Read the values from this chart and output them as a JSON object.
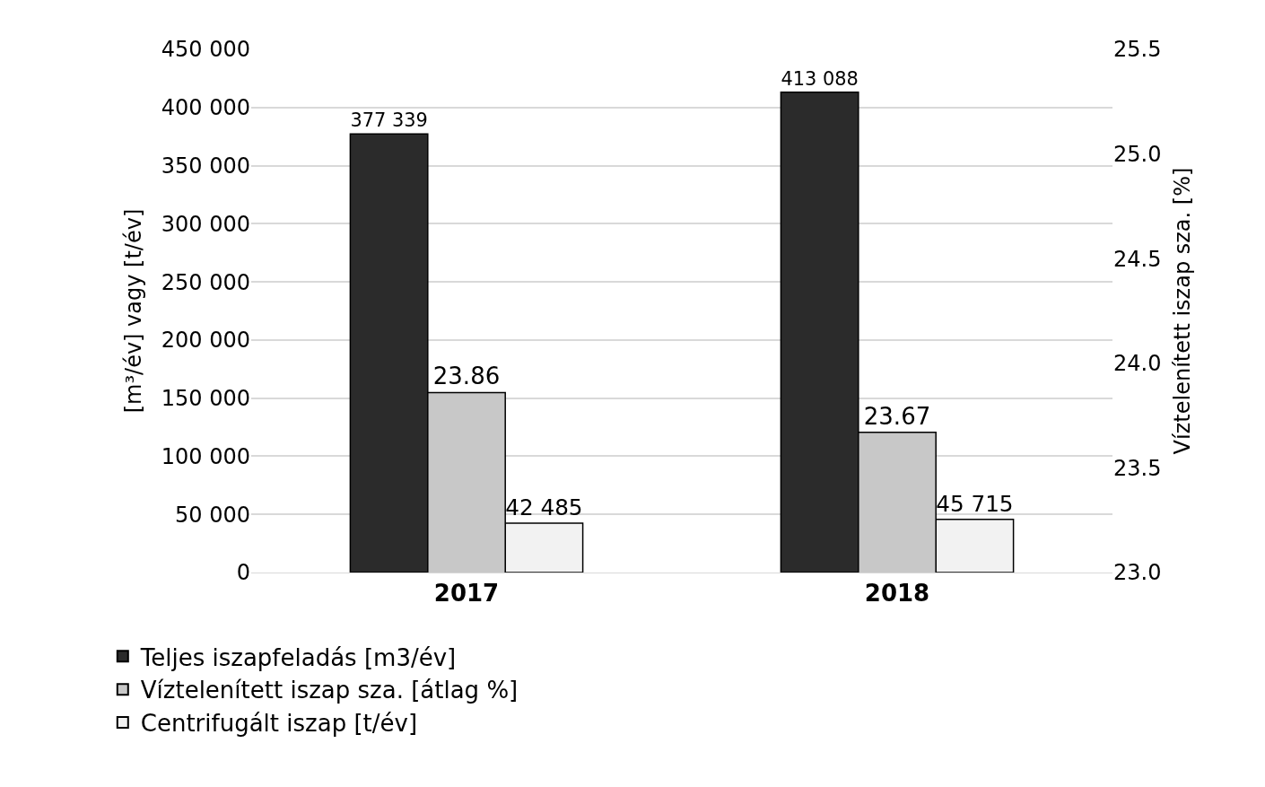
{
  "chart_data": {
    "type": "bar",
    "categories": [
      "2017",
      "2018"
    ],
    "series": [
      {
        "name": "Teljes iszapfeladás [m3/év]",
        "color": "#2b2b2b",
        "values": [
          377339,
          413088
        ],
        "value_labels": [
          "377 339",
          "413 088"
        ]
      },
      {
        "name": "Víztelenített iszap sza. [átlag %]",
        "color": "#c8c8c8",
        "values": [
          23.86,
          23.67
        ],
        "value_labels": [
          "23.86",
          "23.67"
        ],
        "axis": "y2"
      },
      {
        "name": "Centrifugált iszap [t/év]",
        "color": "#f2f2f2",
        "values": [
          42485,
          45715
        ],
        "value_labels": [
          "42 485",
          "45 715"
        ]
      }
    ],
    "ylabel": "[m³/év] vagy [t/év]",
    "y2label": "Víztelenített iszap sza. [%]",
    "ylim": [
      0,
      450000
    ],
    "yticks": [
      {
        "value": 0,
        "label": "0"
      },
      {
        "value": 50000,
        "label": "50 000"
      },
      {
        "value": 100000,
        "label": "100 000"
      },
      {
        "value": 150000,
        "label": "150 000"
      },
      {
        "value": 200000,
        "label": "200 000"
      },
      {
        "value": 250000,
        "label": "250 000"
      },
      {
        "value": 300000,
        "label": "300 000"
      },
      {
        "value": 350000,
        "label": "350 000"
      },
      {
        "value": 400000,
        "label": "400 000"
      },
      {
        "value": 450000,
        "label": "450 000"
      }
    ],
    "y2lim": [
      23.0,
      25.5
    ],
    "y2ticks": [
      {
        "value": 23.0,
        "label": "23.0"
      },
      {
        "value": 23.5,
        "label": "23.5"
      },
      {
        "value": 24.0,
        "label": "24.0"
      },
      {
        "value": 24.5,
        "label": "24.5"
      },
      {
        "value": 25.0,
        "label": "25.0"
      },
      {
        "value": 25.5,
        "label": "25.5"
      }
    ],
    "grid": "y",
    "legend": "bottom left"
  }
}
